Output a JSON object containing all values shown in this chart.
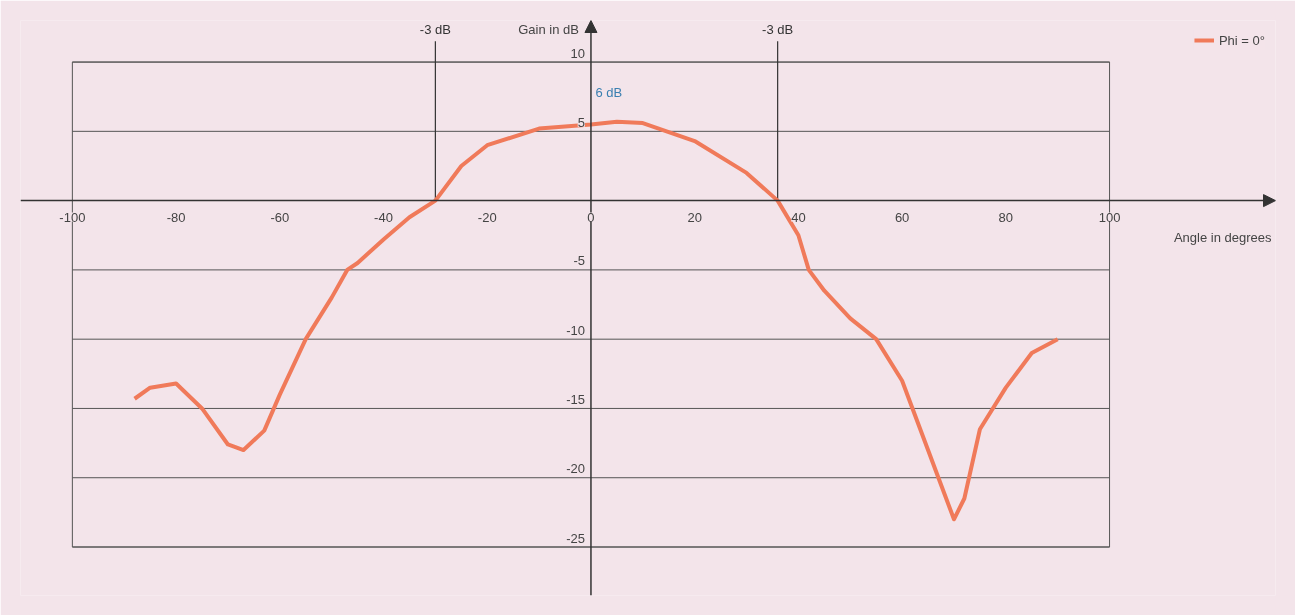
{
  "chart_data": {
    "type": "line",
    "xlabel": "Angle in degrees",
    "ylabel": "Gain in dB",
    "x": [
      -88,
      -85,
      -80,
      -75,
      -70,
      -67,
      -63,
      -60,
      -55,
      -50,
      -47,
      -45,
      -40,
      -35,
      -30,
      -25,
      -20,
      -10,
      0,
      5,
      10,
      20,
      30,
      36,
      40,
      42,
      45,
      50,
      55,
      60,
      62,
      65,
      67,
      70,
      72,
      75,
      80,
      85,
      90
    ],
    "series": [
      {
        "name": "Phi = 0°",
        "color": "#f07a5a",
        "values": [
          -14.3,
          -13.5,
          -13.2,
          -15,
          -17.6,
          -18,
          -16.6,
          -14,
          -10,
          -7,
          -5,
          -4.5,
          -2.8,
          -1.2,
          0,
          2.5,
          4,
          5.2,
          5.5,
          5.7,
          5.6,
          4.3,
          2,
          0,
          -2.5,
          -5,
          -6.5,
          -8.5,
          -10,
          -13,
          -15,
          -18,
          -20,
          -23,
          -21.5,
          -16.5,
          -13.5,
          -11,
          -10
        ]
      }
    ],
    "xlim": [
      -110,
      132
    ],
    "ylim": [
      -28.5,
      13
    ],
    "xticks": [
      -100,
      -80,
      -60,
      -40,
      -20,
      0,
      20,
      40,
      60,
      80,
      100
    ],
    "yticks": [
      10,
      5,
      -5,
      -10,
      -15,
      -20,
      -25
    ],
    "ref_lines": [
      {
        "axis": "x",
        "value": -30,
        "label": "-3 dB"
      },
      {
        "axis": "x",
        "value": 36,
        "label": "-3 dB"
      }
    ],
    "annotations": [
      {
        "text": "6 dB",
        "x": 5,
        "y": 5.7
      }
    ],
    "grid": "y",
    "legend": "top right",
    "line_style": "solid",
    "marker": "none"
  }
}
